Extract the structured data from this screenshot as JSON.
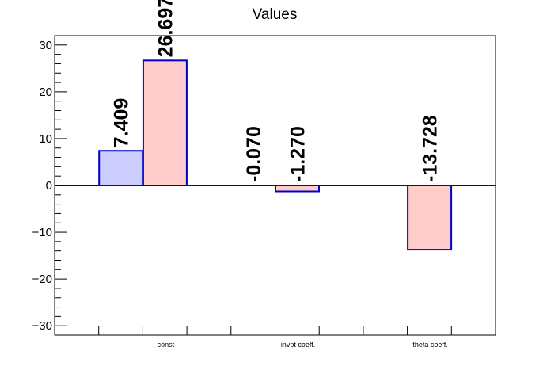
{
  "chart_data": {
    "type": "bar",
    "title": "Values",
    "xlabel": "",
    "ylabel": "",
    "categories": [
      "const",
      "invpt coeff.",
      "theta coeff."
    ],
    "ylim": [
      -32,
      32
    ],
    "yticks": [
      -30,
      -20,
      -10,
      0,
      10,
      20,
      30
    ],
    "ytick_labels": [
      "−30",
      "−20",
      "−10",
      "0",
      "10",
      "20",
      "30"
    ],
    "grid": false,
    "series": [
      {
        "values": [
          7.409,
          -0.07,
          0
        ],
        "labels": [
          "7.409",
          "-0.070",
          ""
        ]
      },
      {
        "values": [
          26.697,
          -1.27,
          -13.728
        ],
        "labels": [
          "26.697",
          "-1.270",
          "-13.728"
        ]
      }
    ],
    "colors": {
      "series_fill": [
        "#ccccff",
        "#ffcccc"
      ],
      "bar_stroke": "#0000cc",
      "zero_line": "#0000cc",
      "axis": "#000000"
    }
  }
}
